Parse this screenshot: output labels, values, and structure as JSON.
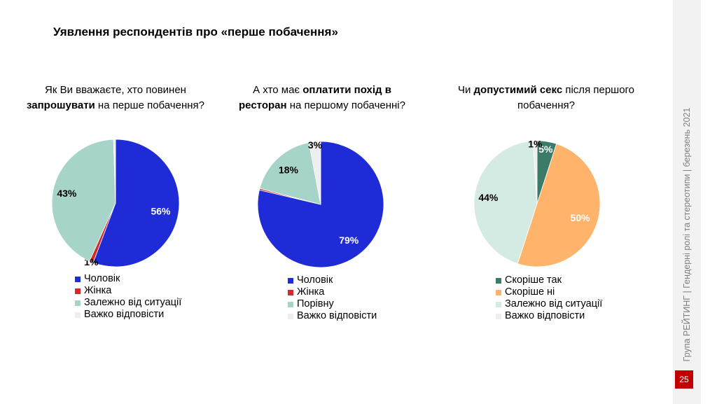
{
  "title": "Уявлення респондентів про «перше побачення»",
  "sidebar": {
    "text": "Група РЕЙТИНГ | Гендерні ролі та стереотипи | березень 2021",
    "page_number": "25"
  },
  "chart_data": [
    {
      "type": "pie",
      "question": [
        {
          "text": "Як Ви вважаєте, хто повинен ",
          "bold": false
        },
        {
          "text": "запрошувати",
          "bold": true
        },
        {
          "text": " на перше побачення?",
          "bold": false
        }
      ],
      "categories": [
        "Чоловік",
        "Жінка",
        "Залежно від ситуації",
        "Важко відповісти"
      ],
      "values": [
        56,
        1,
        43,
        0.5
      ],
      "labels": [
        "56%",
        "1%",
        "43%",
        ""
      ],
      "colors": [
        "#1f2bd6",
        "#d62828",
        "#a6d4c9",
        "#eeeeee"
      ],
      "label_colors": [
        "#ffffff",
        "#000000",
        "#000000",
        "#000000"
      ],
      "start": "12 o'clock, clockwise"
    },
    {
      "type": "pie",
      "question": [
        {
          "text": "А хто має ",
          "bold": false
        },
        {
          "text": "оплатити похід в ресторан",
          "bold": true
        },
        {
          "text": " на першому побаченні?",
          "bold": false
        }
      ],
      "categories": [
        "Чоловік",
        "Жінка",
        "Порівну",
        "Важко відповісти"
      ],
      "values": [
        79,
        0.4,
        18,
        3
      ],
      "labels": [
        "79%",
        "",
        "18%",
        "3%"
      ],
      "colors": [
        "#1f2bd6",
        "#d62828",
        "#a6d4c9",
        "#eeeeee"
      ],
      "label_colors": [
        "#ffffff",
        "#000000",
        "#000000",
        "#000000"
      ],
      "start": "12 o'clock, clockwise"
    },
    {
      "type": "pie",
      "question": [
        {
          "text": "Чи ",
          "bold": false
        },
        {
          "text": "допустимий секс",
          "bold": true
        },
        {
          "text": " після першого побачення?",
          "bold": false
        }
      ],
      "categories": [
        "Скоріше так",
        "Скоріше ні",
        "Залежно від ситуації",
        "Важко відповісти"
      ],
      "values": [
        5,
        50,
        44,
        1
      ],
      "labels": [
        "5%",
        "50%",
        "44%",
        "1%"
      ],
      "colors": [
        "#3c7a69",
        "#ffb36b",
        "#d4ebe4",
        "#eeeeee"
      ],
      "label_colors": [
        "#ffffff",
        "#ffffff",
        "#000000",
        "#000000"
      ],
      "start": "12 o'clock, clockwise"
    }
  ]
}
